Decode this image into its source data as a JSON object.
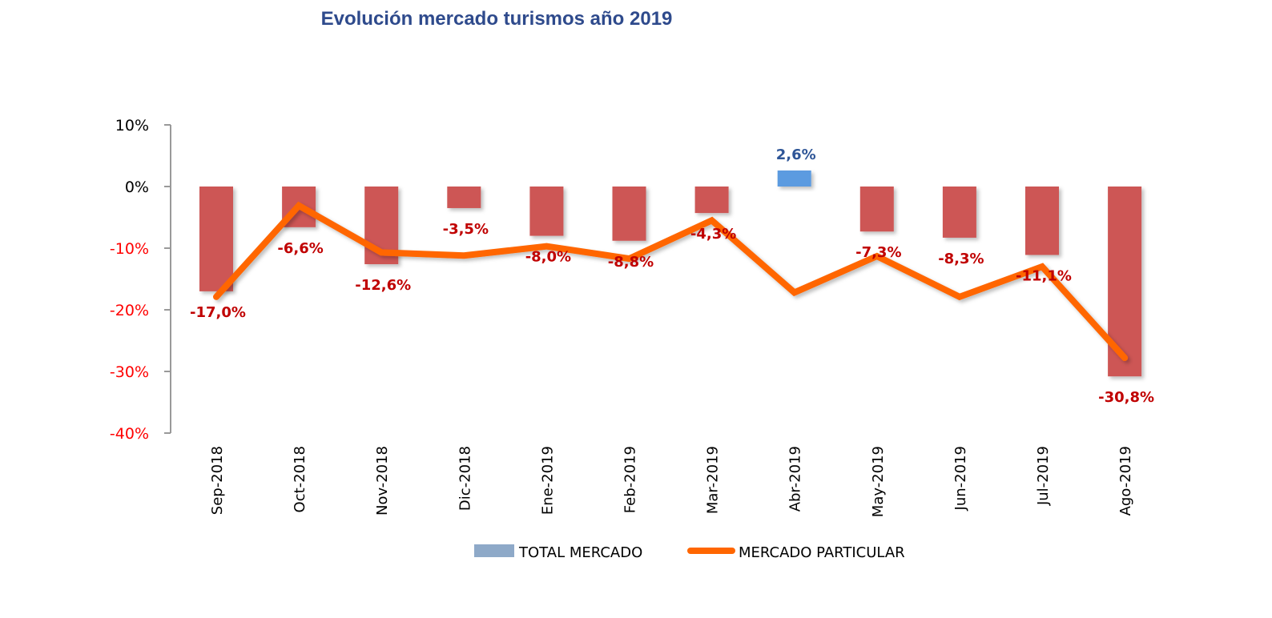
{
  "chart_data": {
    "type": "bar",
    "title": "Evolución mercado turismos año 2019",
    "categories": [
      "Sep-2018",
      "Oct-2018",
      "Nov-2018",
      "Dic-2018",
      "Ene-2019",
      "Feb-2019",
      "Mar-2019",
      "Abr-2019",
      "May-2019",
      "Jun-2019",
      "Jul-2019",
      "Ago-2019"
    ],
    "ylim": [
      -40,
      10
    ],
    "yticks": [
      10,
      0,
      -10,
      -20,
      -30,
      -40
    ],
    "ytick_labels": [
      "10%",
      "0%",
      "-10%",
      "-20%",
      "-30%",
      "-40%"
    ],
    "grid": false,
    "legend_placement": "bottom",
    "series": [
      {
        "name": "TOTAL MERCADO",
        "type": "bar",
        "values": [
          -17.0,
          -6.6,
          -12.6,
          -3.5,
          -8.0,
          -8.8,
          -4.3,
          2.6,
          -7.3,
          -8.3,
          -11.1,
          -30.8
        ],
        "labels": [
          "-17,0%",
          "-6,6%",
          "-12,6%",
          "-3,5%",
          "-8,0%",
          "-8,8%",
          "-4,3%",
          "2,6%",
          "-7,3%",
          "-8,3%",
          "-11,1%",
          "-30,8%"
        ]
      },
      {
        "name": "MERCADO PARTICULAR",
        "type": "line",
        "values": [
          -17.9,
          -3.1,
          -10.7,
          -11.2,
          -9.7,
          -11.7,
          -5.5,
          -17.2,
          -11.3,
          -17.9,
          -13.0,
          -27.8
        ]
      }
    ],
    "colors": {
      "negative_bar": "#cd5654",
      "positive_bar": "#5b9be0",
      "legend_bar": "#8ea9c8",
      "line": "#ff6600",
      "negative_label": "#c00000",
      "positive_label": "#2e5597",
      "negative_tick": "#ff0000",
      "positive_tick": "#000000",
      "title": "#2e4a8c"
    }
  }
}
